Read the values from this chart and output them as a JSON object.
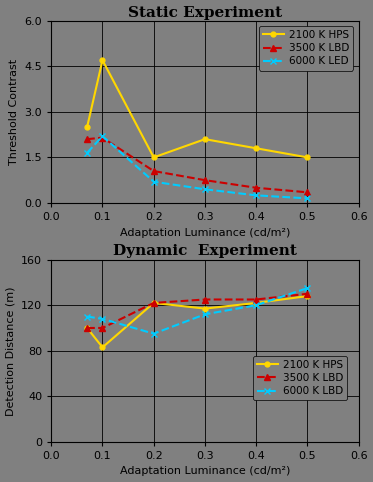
{
  "static": {
    "title": "Static Experiment",
    "xlabel": "Adaptation Luminance (cd/m²)",
    "ylabel": "Threshold Contrast",
    "xlim": [
      0,
      0.6
    ],
    "ylim": [
      0,
      6
    ],
    "xticks": [
      0,
      0.1,
      0.2,
      0.3,
      0.4,
      0.5,
      0.6
    ],
    "yticks": [
      0,
      1.5,
      3,
      4.5,
      6
    ],
    "x": [
      0.07,
      0.1,
      0.2,
      0.3,
      0.4,
      0.5
    ],
    "hps_y": [
      2.5,
      4.7,
      1.5,
      2.1,
      1.8,
      1.5
    ],
    "led35_y": [
      2.1,
      2.15,
      1.05,
      0.75,
      0.5,
      0.35
    ],
    "led60_y": [
      1.65,
      2.2,
      0.7,
      0.45,
      0.25,
      0.15
    ]
  },
  "dynamic": {
    "title": "Dynamic  Experiment",
    "xlabel": "Adaptation Luminance (cd/m²)",
    "ylabel": "Detection Distance (m)",
    "xlim": [
      0,
      0.6
    ],
    "ylim": [
      0,
      160
    ],
    "xticks": [
      0,
      0.1,
      0.2,
      0.3,
      0.4,
      0.5,
      0.6
    ],
    "yticks": [
      0,
      40,
      80,
      120,
      160
    ],
    "x": [
      0.07,
      0.1,
      0.2,
      0.3,
      0.4,
      0.5
    ],
    "hps_y": [
      100,
      83,
      122,
      117,
      122,
      128
    ],
    "led35_y": [
      100,
      100,
      122,
      125,
      125,
      130
    ],
    "led60_y": [
      110,
      108,
      95,
      112,
      120,
      135
    ]
  },
  "colors": {
    "hps": "#FFD700",
    "led35": "#CC0000",
    "led60": "#00CCFF"
  },
  "legend_static": {
    "hps": "2100 K HPS",
    "led35": "3500 K LBD",
    "led60": "6000 K LED"
  },
  "legend_dynamic": {
    "hps": "2100 K HPS",
    "led35": "3500 K LBD",
    "led60": "6000 K LBD"
  },
  "bg_color": "#808080",
  "title_fontsize": 11,
  "label_fontsize": 8,
  "tick_fontsize": 8,
  "legend_fontsize": 7.5
}
